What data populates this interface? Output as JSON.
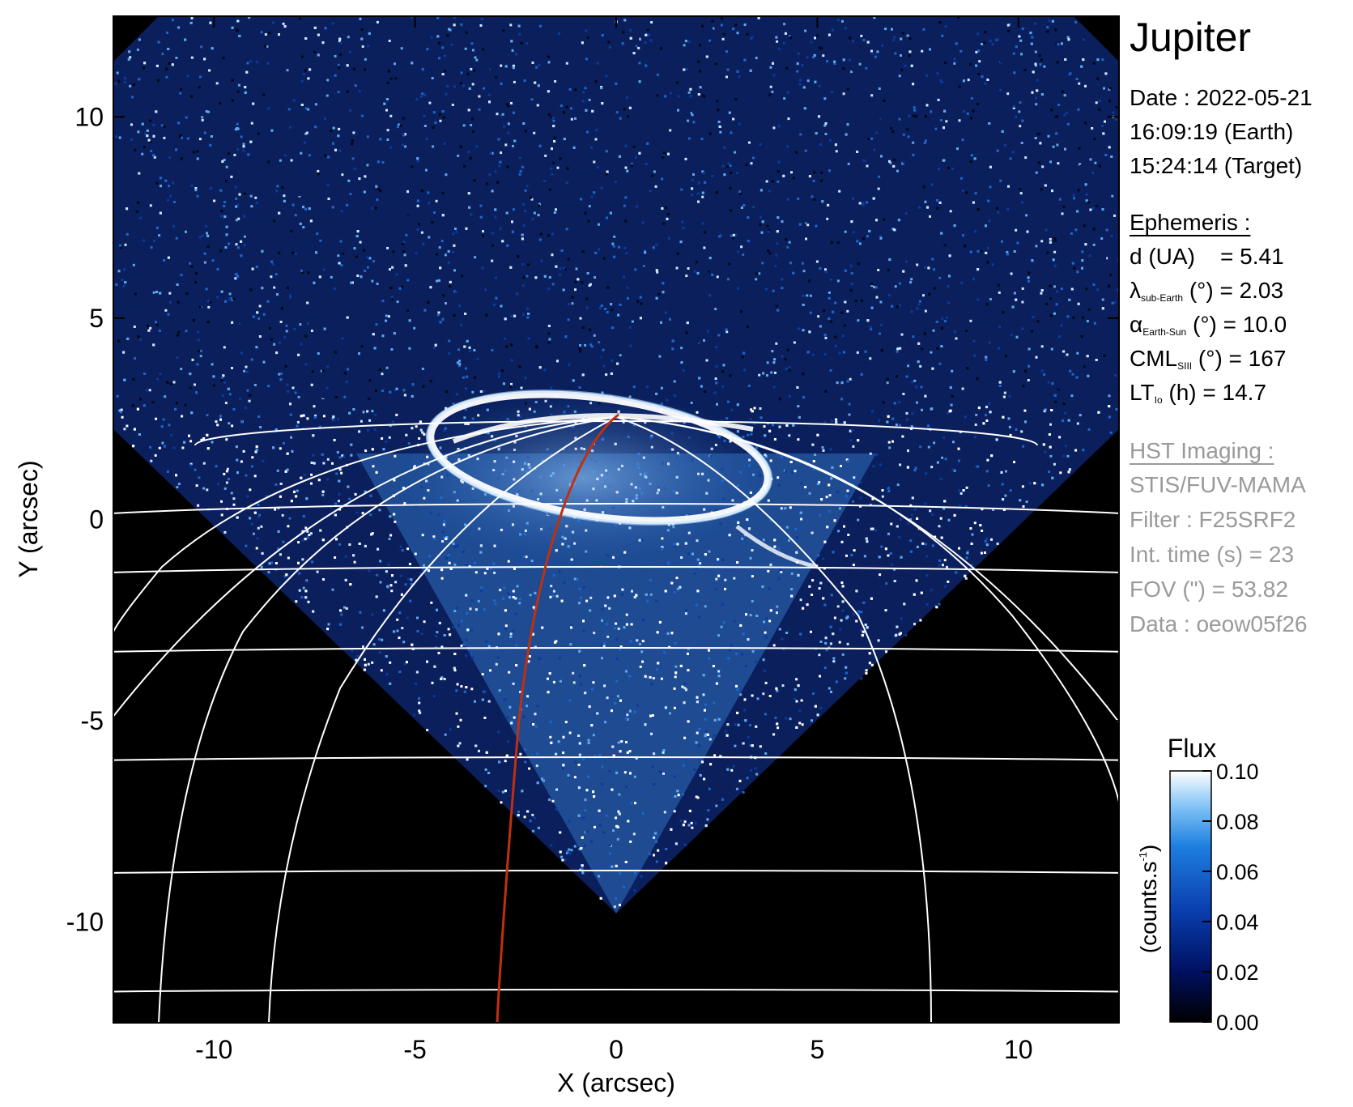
{
  "title": "Jupiter",
  "observation": {
    "date_line": "Date : 2022-05-21",
    "earth_time": "16:09:19 (Earth)",
    "target_time": "15:24:14 (Target)"
  },
  "ephemeris": {
    "heading": "Ephemeris :",
    "d_label": "d (UA)",
    "d_value": "= 5.41",
    "lambda_symbol": "λ",
    "lambda_sub": "sub-Earth",
    "lambda_value": "(°) = 2.03",
    "alpha_symbol": "α",
    "alpha_sub": "Earth-Sun",
    "alpha_value": "(°) = 10.0",
    "cml_label": "CML",
    "cml_sub": "SIII",
    "cml_value": "(°) = 167",
    "lt_label": "LT",
    "lt_sub": "Io",
    "lt_value": "(h) = 14.7"
  },
  "hst_imaging": {
    "heading": "HST Imaging :",
    "instrument": "STIS/FUV-MAMA",
    "filter": "Filter : F25SRF2",
    "int_time": "Int. time (s) = 23",
    "fov": "FOV (\") = 53.82",
    "data": "Data : oeow05f26"
  },
  "image": {
    "x_axis_label": "X (arcsec)",
    "y_axis_label": "Y (arcsec)",
    "x_ticks": [
      -10,
      -5,
      0,
      5,
      10
    ],
    "y_ticks": [
      10,
      5,
      0,
      -5,
      -10
    ],
    "x_range": [
      -12.5,
      12.5
    ],
    "y_range": [
      -12.5,
      12.5
    ],
    "grid_color": "#ffffff",
    "io_footprint_color": "#c03010",
    "background_color": "#000000"
  },
  "colorbar": {
    "title": "Flux",
    "unit_label": "(counts.s",
    "unit_sup": "-1",
    "unit_close": ")",
    "ticks": [
      "0.10",
      "0.08",
      "0.06",
      "0.04",
      "0.02",
      "0.00"
    ],
    "range": [
      0.0,
      0.1
    ],
    "colors": [
      "#000000",
      "#001060",
      "#0a3fb0",
      "#1e7fe0",
      "#7cc0f5",
      "#ffffff"
    ]
  }
}
